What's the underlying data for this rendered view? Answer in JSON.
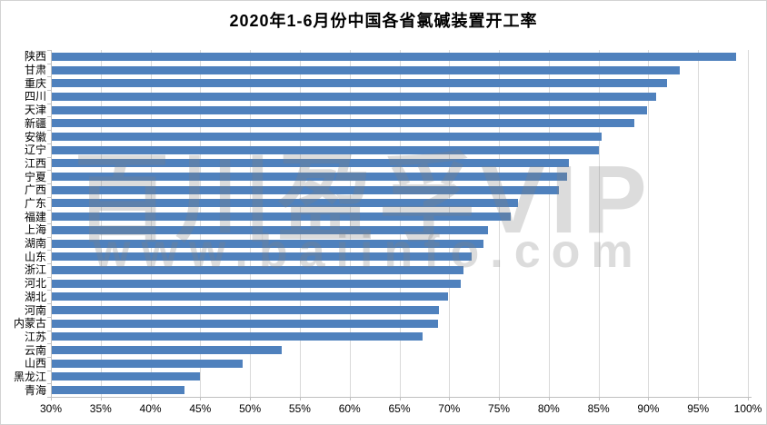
{
  "title": "2020年1-6月份中国各省氯碱装置开工率",
  "watermark": {
    "line1": "百川盈孚VIP",
    "line2": "www.baiinfo.com"
  },
  "colors": {
    "bar": "#4F81BD",
    "gridline": "#D9D9D9",
    "axis": "#BFBFBF",
    "text": "#000000",
    "background": "#FFFFFF",
    "watermark_gray": "#D6D6D6"
  },
  "chart_data": {
    "type": "bar",
    "orientation": "horizontal",
    "title": "2020年1-6月份中国各省氯碱装置开工率",
    "unit": "%",
    "categories": [
      "陕西",
      "甘肃",
      "重庆",
      "四川",
      "天津",
      "新疆",
      "安徽",
      "辽宁",
      "江西",
      "宁夏",
      "广西",
      "广东",
      "福建",
      "上海",
      "湖南",
      "山东",
      "浙江",
      "河北",
      "湖北",
      "河南",
      "内蒙古",
      "江苏",
      "云南",
      "山西",
      "黑龙江",
      "青海"
    ],
    "values": [
      98.8,
      93.2,
      91.9,
      90.8,
      89.9,
      88.6,
      85.3,
      85.0,
      82.0,
      81.8,
      81.0,
      76.9,
      76.2,
      73.9,
      73.4,
      72.3,
      71.4,
      71.2,
      69.9,
      69.0,
      68.9,
      67.3,
      53.2,
      49.3,
      45.0,
      43.4
    ],
    "xlabel": "",
    "ylabel": "",
    "x_axis": {
      "min": 30,
      "max": 100,
      "step": 5,
      "tick_labels": [
        "30%",
        "35%",
        "40%",
        "45%",
        "50%",
        "55%",
        "60%",
        "65%",
        "70%",
        "75%",
        "80%",
        "85%",
        "90%",
        "95%",
        "100%"
      ]
    },
    "grid": true,
    "legend": false,
    "sort": "descending"
  }
}
